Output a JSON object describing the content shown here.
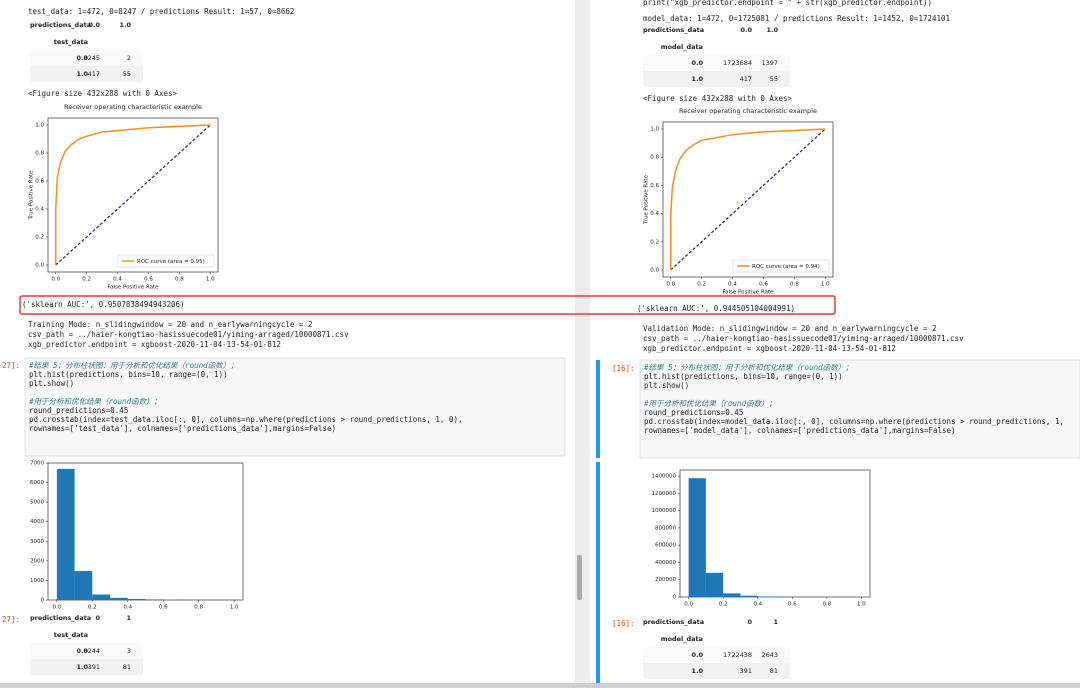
{
  "panes": [
    {
      "header": "test_data: 1=472, 0=8247 /  predictions Result: 1=57, 0=8662",
      "table1": {
        "columns_label": "predictions_data",
        "columns": [
          "0.0",
          "1.0"
        ],
        "index_label": "test_data",
        "rows": [
          [
            "0.0",
            "8245",
            "2"
          ],
          [
            "1.0",
            "417",
            "55"
          ]
        ]
      },
      "figure_label": "<Figure size 432x288 with 0 Axes>",
      "roc": {
        "type": "line",
        "title": "Receiver operating characteristic example",
        "x_label": "False Positive Rate",
        "y_label": "True Positive Rate",
        "legend": "ROC curve (area = 0.95)",
        "color": "#ff8c1a",
        "x": [
          0,
          0,
          0.01,
          0.03,
          0.06,
          0.1,
          0.15,
          0.2,
          0.3,
          0.4,
          0.6,
          0.8,
          1.0
        ],
        "values": [
          0,
          0.4,
          0.62,
          0.73,
          0.81,
          0.86,
          0.9,
          0.92,
          0.95,
          0.96,
          0.98,
          0.99,
          1.0
        ],
        "xlim": [
          -0.05,
          1.05
        ],
        "ylim": [
          -0.05,
          1.05
        ],
        "xticks": [
          {
            "value": 0,
            "label": "0.0"
          },
          0.2,
          0.4,
          0.6,
          0.8,
          {
            "value": 1,
            "label": "1.0"
          }
        ],
        "yticks": [
          {
            "value": 0,
            "label": "0.0"
          },
          0.2,
          0.4,
          0.6,
          0.8,
          {
            "value": 1,
            "label": "1.0"
          }
        ]
      },
      "auc": "('sklearn AUC:', 0.9507838494943206)",
      "info": [
        "Training Mode: n_slidingwindow = 20 and n_earlywarningcycle = 2",
        "csv_path = ../haier-kongtiao-hasissuecode01/yiming-arraged/10000871.csv",
        "xgb_predictor.endpoint = xgboost-2020-11-04-13-54-01-812"
      ],
      "prompt": "27]:",
      "code": [
        [
          "#结果 5：分布柱状图：用于分析和优化结果（round函数）；",
          "plt.hist(predictions, bins=10, range=(0, 1))",
          "plt.show()"
        ],
        [
          "#用于分析和优化结果（round函数）；",
          "round_predictions=0.45",
          "pd.crosstab(index=test_data.iloc[:, 0], columns=np.where(predictions > round_predictions, 1, 0),",
          "           rownames=['test_data'], colnames=['predictions_data'],margins=False)"
        ]
      ],
      "histogram": {
        "type": "histogram",
        "color": "#1f77b4",
        "bins": [
          0,
          0.1,
          0.2,
          0.3,
          0.4,
          0.5,
          0.6,
          0.7,
          0.8,
          0.9,
          1.0
        ],
        "values": [
          6700,
          1480,
          280,
          110,
          55,
          30,
          15,
          8,
          4,
          2
        ],
        "xlim": [
          -0.05,
          1.05
        ],
        "ylim": [
          0,
          7000
        ],
        "xticks": [
          {
            "value": 0,
            "label": "0.0"
          },
          0.2,
          0.4,
          0.6,
          0.8,
          {
            "value": 1,
            "label": "1.0"
          }
        ],
        "yticks": [
          0,
          1000,
          2000,
          3000,
          4000,
          5000,
          6000,
          7000
        ]
      },
      "result_prompt": "27]:",
      "table2": {
        "columns_label": "predictions_data",
        "columns": [
          "0",
          "1"
        ],
        "index_label": "test_data",
        "rows": [
          [
            "0.0",
            "8244",
            "3"
          ],
          [
            "1.0",
            "391",
            "81"
          ]
        ]
      }
    },
    {
      "top_line": "print(\"xgb_predictor.endpoint = \" + str(xgb_predictor.endpoint))",
      "header": "model_data: 1=472, 0=1725081 /  predictions Result: 1=1452, 0=1724101",
      "table1": {
        "columns_label": "predictions_data",
        "columns": [
          "0.0",
          "1.0"
        ],
        "index_label": "model_data",
        "rows": [
          [
            "0.0",
            "1723684",
            "1397"
          ],
          [
            "1.0",
            "417",
            "55"
          ]
        ]
      },
      "figure_label": "<Figure size 432x288 with 0 Axes>",
      "roc": {
        "type": "line",
        "title": "Receiver operating characteristic example",
        "x_label": "False Positive Rate",
        "y_label": "True Positive Rate",
        "legend": "ROC curve (area = 0.94)",
        "color": "#ff8c1a",
        "x": [
          0,
          0,
          0.01,
          0.03,
          0.06,
          0.1,
          0.15,
          0.2,
          0.3,
          0.4,
          0.6,
          0.8,
          1.0
        ],
        "values": [
          0,
          0.38,
          0.58,
          0.7,
          0.79,
          0.85,
          0.89,
          0.92,
          0.94,
          0.96,
          0.98,
          0.99,
          1.0
        ],
        "xlim": [
          -0.05,
          1.05
        ],
        "ylim": [
          -0.05,
          1.05
        ],
        "xticks": [
          {
            "value": 0,
            "label": "0.0"
          },
          0.2,
          0.4,
          0.6,
          0.8,
          {
            "value": 1,
            "label": "1.0"
          }
        ],
        "yticks": [
          {
            "value": 0,
            "label": "0.0"
          },
          0.2,
          0.4,
          0.6,
          0.8,
          {
            "value": 1,
            "label": "1.0"
          }
        ]
      },
      "auc": "('sklearn AUC:', 0.944505104004991)",
      "info": [
        "Validation Mode: n_slidingwindow = 20 and n_earlywarningcycle = 2",
        "csv_path = ../haier-kongtiao-hasissuecode01/yiming-arraged/10000871.csv",
        "xgb_predictor.endpoint = xgboost-2020-11-04-13-54-01-812"
      ],
      "prompt": "[16]:",
      "code": [
        [
          "#结果 5：分布柱状图：用于分析和优化结果（round函数）；",
          "plt.hist(predictions, bins=10, range=(0, 1))",
          "plt.show()"
        ],
        [
          "#用于分析和优化结果（round函数）；",
          "round_predictions=0.45",
          "pd.crosstab(index=model_data.iloc[:, 0], columns=np.where(predictions > round_predictions, 1,",
          "           rownames=['model_data'], colnames=['predictions_data'],margins=False)"
        ]
      ],
      "histogram": {
        "type": "histogram",
        "color": "#1f77b4",
        "bins": [
          0,
          0.1,
          0.2,
          0.3,
          0.4,
          0.5,
          0.6,
          0.7,
          0.8,
          0.9,
          1.0
        ],
        "values": [
          1375000,
          280000,
          42000,
          15000,
          6000,
          3000,
          1500,
          800,
          400,
          200
        ],
        "xlim": [
          -0.05,
          1.05
        ],
        "ylim": [
          0,
          1470000
        ],
        "xticks": [
          {
            "value": 0,
            "label": "0.0"
          },
          0.2,
          0.4,
          0.6,
          0.8,
          {
            "value": 1,
            "label": "1.0"
          }
        ],
        "yticks": [
          0,
          200000,
          400000,
          600000,
          800000,
          1000000,
          1200000,
          1400000
        ]
      },
      "result_prompt": "[16]:",
      "table2": {
        "columns_label": "predictions_data",
        "columns": [
          "0",
          "1"
        ],
        "index_label": "model_data",
        "rows": [
          [
            "0.0",
            "1722438",
            "2643"
          ],
          [
            "1.0",
            "391",
            "81"
          ]
        ]
      }
    }
  ]
}
